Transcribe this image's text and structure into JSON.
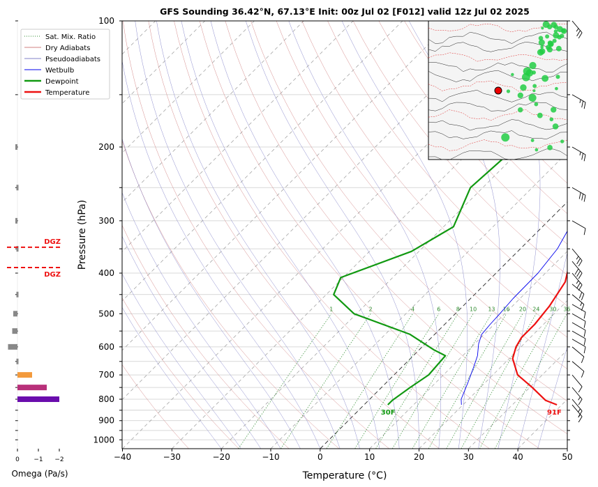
{
  "chart_data": {
    "type": "line",
    "title": "GFS Sounding 36.42°N, 67.13°E Init: 00z Jul 02 [F012] valid 12z Jul 02 2025",
    "xlabel": "Temperature (°C)",
    "ylabel": "Pressure (hPa)",
    "xlim": [
      -40,
      50
    ],
    "ylim": [
      1050,
      100
    ],
    "y_scale": "log",
    "x_ticks": [
      "−40",
      "−30",
      "−20",
      "−10",
      "0",
      "10",
      "20",
      "30",
      "40",
      "50"
    ],
    "x_tick_values": [
      -40,
      -30,
      -20,
      -10,
      0,
      10,
      20,
      30,
      40,
      50
    ],
    "y_ticks": [
      "100",
      "200",
      "300",
      "400",
      "500",
      "600",
      "700",
      "800",
      "900",
      "1000"
    ],
    "y_tick_values": [
      100,
      200,
      300,
      400,
      500,
      600,
      700,
      800,
      900,
      1000
    ],
    "grid": true,
    "legend": {
      "placement": "upper-left",
      "entries": [
        {
          "label": "Sat. Mix. Ratio",
          "color": "#2e8b2e",
          "style": "dotted"
        },
        {
          "label": "Dry Adiabats",
          "color": "#d08080",
          "style": "solid"
        },
        {
          "label": "Pseudoadiabats",
          "color": "#8080c8",
          "style": "solid"
        },
        {
          "label": "Wetbulb",
          "color": "#0000ee",
          "style": "solid"
        },
        {
          "label": "Dewpoint",
          "color": "#119911",
          "style": "bold"
        },
        {
          "label": "Temperature",
          "color": "#ee1111",
          "style": "bold"
        }
      ]
    },
    "mixing_ratio_labels": [
      "1",
      "2",
      "4",
      "6",
      "8",
      "10",
      "13",
      "16",
      "20",
      "24",
      "30",
      "36"
    ],
    "mixing_ratio_values": [
      1,
      2,
      4,
      6,
      8,
      10,
      13,
      16,
      20,
      24,
      30,
      36
    ],
    "series": [
      {
        "name": "Temperature",
        "color": "#ee1111",
        "points": [
          [
            39,
            825
          ],
          [
            35.8,
            805
          ],
          [
            30.5,
            750
          ],
          [
            25,
            700
          ],
          [
            20.7,
            640
          ],
          [
            19,
            600
          ],
          [
            18.2,
            570
          ],
          [
            18.2,
            530
          ],
          [
            17.5,
            480
          ],
          [
            15.8,
            420
          ],
          [
            12.2,
            370
          ],
          [
            7,
            320
          ],
          [
            3,
            280
          ],
          [
            -1.5,
            250
          ],
          [
            -4.5,
            222
          ],
          [
            -7.5,
            200
          ],
          [
            -10.5,
            177
          ],
          [
            -13.5,
            155
          ],
          [
            -15.5,
            135
          ],
          [
            -17.5,
            118
          ],
          [
            -19.5,
            103
          ],
          [
            -20.5,
            98
          ]
        ]
      },
      {
        "name": "Dewpoint",
        "color": "#119911",
        "points": [
          [
            4.8,
            825
          ],
          [
            4.8,
            805
          ],
          [
            5.8,
            750
          ],
          [
            7,
            700
          ],
          [
            6.5,
            630
          ],
          [
            3,
            610
          ],
          [
            -5,
            560
          ],
          [
            -20.5,
            500
          ],
          [
            -28.5,
            450
          ],
          [
            -30.5,
            410
          ],
          [
            -21.5,
            355
          ],
          [
            -18,
            310
          ],
          [
            -22.5,
            250
          ],
          [
            -21.5,
            200
          ],
          [
            -21.5,
            167
          ],
          [
            -21,
            140
          ],
          [
            -19.5,
            120
          ],
          [
            -18,
            102
          ],
          [
            -18,
            98
          ]
        ]
      },
      {
        "name": "Wetbulb",
        "color": "#0000ee",
        "points": [
          [
            19.7,
            825
          ],
          [
            18.5,
            800
          ],
          [
            16.5,
            730
          ],
          [
            14.5,
            670
          ],
          [
            13,
            630
          ],
          [
            10.8,
            590
          ],
          [
            9.5,
            560
          ],
          [
            9.2,
            530
          ],
          [
            9,
            500
          ],
          [
            8.6,
            460
          ],
          [
            8.5,
            400
          ],
          [
            7.5,
            350
          ],
          [
            5,
            300
          ],
          [
            2,
            265
          ],
          [
            -1.5,
            240
          ],
          [
            -5,
            210
          ],
          [
            -8.5,
            185
          ],
          [
            -12,
            162
          ],
          [
            -15,
            142
          ]
        ]
      }
    ],
    "annotations": [
      {
        "text": "91F",
        "color": "#ee1111"
      },
      {
        "text": "30F",
        "color": "#119911"
      }
    ],
    "omega_panel": {
      "xlabel": "Omega (Pa/s)",
      "ticks": [
        "0",
        "−1",
        "−2"
      ],
      "tick_values": [
        0,
        -1,
        -2
      ],
      "dgz_label": "DGZ",
      "dgz_levels": [
        347,
        388
      ],
      "bars": [
        {
          "p": 200,
          "omega": 0.1
        },
        {
          "p": 250,
          "omega": 0.05
        },
        {
          "p": 300,
          "omega": 0.1
        },
        {
          "p": 350,
          "omega": 0.05
        },
        {
          "p": 450,
          "omega": 0.05
        },
        {
          "p": 500,
          "omega": 0.2
        },
        {
          "p": 550,
          "omega": 0.25
        },
        {
          "p": 600,
          "omega": 0.45
        },
        {
          "p": 650,
          "omega": 0.05
        },
        {
          "p": 700,
          "omega": -0.7
        },
        {
          "p": 750,
          "omega": -1.4
        },
        {
          "p": 800,
          "omega": -2.0
        }
      ]
    },
    "wind_barbs": [
      {
        "p": 100,
        "speed_kt": 25,
        "dir": 320
      },
      {
        "p": 150,
        "speed_kt": 25,
        "dir": 300
      },
      {
        "p": 200,
        "speed_kt": 25,
        "dir": 300
      },
      {
        "p": 250,
        "speed_kt": 30,
        "dir": 300
      },
      {
        "p": 300,
        "speed_kt": 10,
        "dir": 300
      },
      {
        "p": 350,
        "speed_kt": 25,
        "dir": 320
      },
      {
        "p": 375,
        "speed_kt": 30,
        "dir": 320
      },
      {
        "p": 400,
        "speed_kt": 25,
        "dir": 320
      },
      {
        "p": 425,
        "speed_kt": 20,
        "dir": 310
      },
      {
        "p": 450,
        "speed_kt": 15,
        "dir": 310
      },
      {
        "p": 475,
        "speed_kt": 10,
        "dir": 300
      },
      {
        "p": 500,
        "speed_kt": 10,
        "dir": 300
      },
      {
        "p": 525,
        "speed_kt": 10,
        "dir": 300
      },
      {
        "p": 550,
        "speed_kt": 10,
        "dir": 300
      },
      {
        "p": 575,
        "speed_kt": 10,
        "dir": 300
      },
      {
        "p": 600,
        "speed_kt": 10,
        "dir": 310
      },
      {
        "p": 650,
        "speed_kt": 10,
        "dir": 310
      },
      {
        "p": 700,
        "speed_kt": 10,
        "dir": 320
      },
      {
        "p": 750,
        "speed_kt": 15,
        "dir": 320
      },
      {
        "p": 800,
        "speed_kt": 15,
        "dir": 320
      },
      {
        "p": 825,
        "speed_kt": 15,
        "dir": 320
      }
    ]
  },
  "inset_map": {
    "marker_color": "#ee0000"
  },
  "colors": {
    "temperature": "#ee1111",
    "dewpoint": "#119911",
    "wetbulb": "#0000ee",
    "dry_adiabat": "#d08080",
    "pseudoadiabat": "#8080c8",
    "mixing_ratio": "#2e8b2e",
    "isotherm": "#999999",
    "dgz": "#ee1111"
  }
}
